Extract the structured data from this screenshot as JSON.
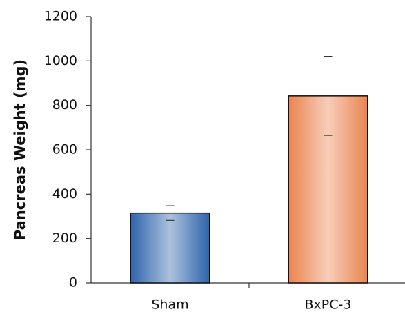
{
  "chart_data": {
    "type": "bar",
    "y_label": "Pancreas Weight (mg)",
    "categories": [
      "Sham",
      "BxPC-3"
    ],
    "values": [
      315,
      843
    ],
    "errors": [
      33,
      178
    ],
    "colors": [
      "#2f64ab",
      "#ea8550"
    ],
    "ylim": [
      0,
      1200
    ],
    "yticks": [
      0,
      200,
      400,
      600,
      800,
      1000,
      1200
    ]
  }
}
